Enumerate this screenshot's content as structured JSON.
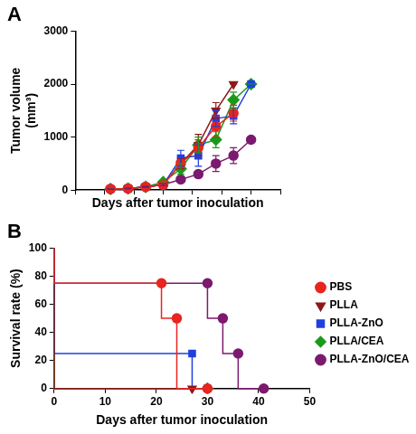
{
  "chart_data": [
    {
      "type": "line",
      "title": "A",
      "x_label": "Days after tumor inoculation",
      "y_label": [
        "Tumor volume",
        "(mm³)"
      ],
      "xlim": [
        0,
        35
      ],
      "xticks": [
        0,
        5,
        10,
        15,
        20,
        25,
        30,
        35
      ],
      "ylim": [
        0,
        3000
      ],
      "yticks": [
        0,
        1000,
        2000,
        3000
      ],
      "grid": false,
      "tick_labels": "y",
      "x": [
        6,
        9,
        12,
        15,
        18,
        21,
        24,
        27,
        30
      ],
      "series": [
        {
          "name": "PBS",
          "color": "#e8251f",
          "marker": "circle",
          "values": [
            20,
            30,
            60,
            100,
            500,
            800,
            1200,
            1450,
            null
          ],
          "errors": [
            5,
            5,
            10,
            20,
            100,
            150,
            200,
            150,
            null
          ]
        },
        {
          "name": "PLLA",
          "color": "#8b1a1a",
          "marker": "triangle_down",
          "values": [
            20,
            30,
            60,
            100,
            500,
            850,
            1500,
            2000,
            null
          ],
          "errors": [
            5,
            5,
            10,
            20,
            100,
            200,
            150,
            0,
            null
          ]
        },
        {
          "name": "PLLA-ZnO",
          "color": "#1f3fe0",
          "marker": "square",
          "values": [
            20,
            30,
            60,
            100,
            600,
            650,
            1350,
            1400,
            2000
          ],
          "errors": [
            5,
            5,
            10,
            20,
            150,
            200,
            150,
            150,
            0
          ]
        },
        {
          "name": "PLLA/CEA",
          "color": "#1a9a1a",
          "marker": "diamond",
          "values": [
            20,
            30,
            60,
            150,
            400,
            850,
            950,
            1700,
            2000
          ],
          "errors": [
            5,
            5,
            10,
            20,
            100,
            150,
            150,
            150,
            0
          ]
        },
        {
          "name": "PLLA-ZnO/CEA",
          "color": "#7b1a6e",
          "marker": "circle",
          "values": [
            20,
            30,
            60,
            100,
            200,
            300,
            500,
            650,
            950
          ],
          "errors": [
            5,
            5,
            10,
            20,
            50,
            50,
            150,
            150,
            50
          ]
        }
      ]
    },
    {
      "type": "step",
      "title": "B",
      "x_label": "Days after tumor inoculation",
      "y_label": "Survival rate (%)",
      "xlim": [
        0,
        50
      ],
      "xticks": [
        0,
        10,
        20,
        30,
        40,
        50
      ],
      "ylim": [
        0,
        100
      ],
      "yticks": [
        0,
        20,
        40,
        60,
        80,
        100
      ],
      "grid": false,
      "legend": "right",
      "series": [
        {
          "name": "PBS",
          "color": "#e8251f",
          "marker": "circle",
          "x": [
            0,
            21,
            24,
            30
          ],
          "values": [
            100,
            75,
            50,
            0
          ]
        },
        {
          "name": "PLLA",
          "color": "#8b1a1a",
          "marker": "triangle_down",
          "x": [
            0,
            27
          ],
          "values": [
            100,
            0
          ]
        },
        {
          "name": "PLLA-ZnO",
          "color": "#1f3fe0",
          "marker": "square",
          "x": [
            0,
            27,
            30
          ],
          "values": [
            100,
            25,
            0
          ]
        },
        {
          "name": "PLLA/CEA",
          "color": "#1a9a1a",
          "marker": "diamond",
          "x": [
            0,
            30
          ],
          "values": [
            100,
            0
          ]
        },
        {
          "name": "PLLA-ZnO/CEA",
          "color": "#7b1a6e",
          "marker": "circle",
          "x": [
            0,
            30,
            33,
            36,
            41
          ],
          "values": [
            100,
            75,
            50,
            25,
            0
          ]
        }
      ]
    }
  ]
}
